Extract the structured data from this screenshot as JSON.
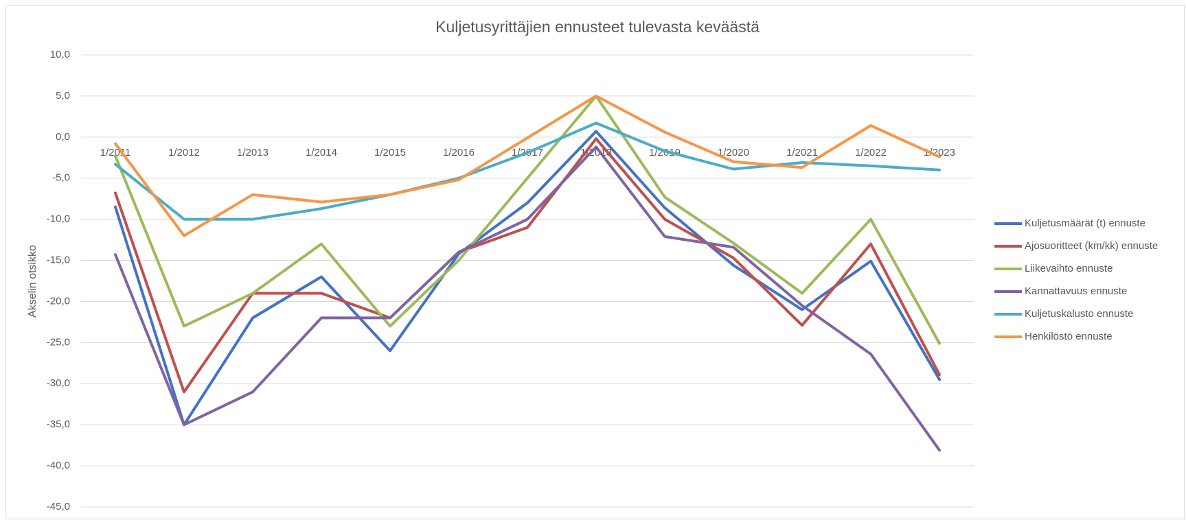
{
  "chart_data": {
    "type": "line",
    "title": "Kuljetusyrittäjien ennusteet tulevasta keväästä",
    "y_label": "Akselin otsikko",
    "categories": [
      "1/2011",
      "1/2012",
      "1/2013",
      "1/2014",
      "1/2015",
      "1/2016",
      "1/2017",
      "1/2018",
      "1/2019",
      "1/2020",
      "1/2021",
      "1/2022",
      "1/2023"
    ],
    "series": [
      {
        "name": "Kuljetusmäärät (t) ennuste",
        "color": "#4472c4",
        "values": [
          -8.5,
          -35,
          -22,
          -17,
          -26,
          -14.2,
          -8,
          0.7,
          -8.6,
          -15.6,
          -21,
          -15.1,
          -29.5
        ]
      },
      {
        "name": "Ajosuoritteet (km/kk) ennuste",
        "color": "#c0504d",
        "values": [
          -6.8,
          -31,
          -19,
          -19,
          -22,
          -14,
          -11,
          -0.2,
          -10,
          -14.7,
          -22.9,
          -13,
          -28.9
        ]
      },
      {
        "name": "Liikevaihto ennuste",
        "color": "#9bbb59",
        "values": [
          -2.3,
          -23,
          -19,
          -13,
          -23,
          -15,
          -5,
          5,
          -7.3,
          -12.9,
          -19,
          -10,
          -25.1
        ]
      },
      {
        "name": "Kannattavuus ennuste",
        "color": "#8064a2",
        "values": [
          -14.3,
          -35,
          -31,
          -22,
          -22,
          -14,
          -10,
          -1.2,
          -12.1,
          -13.4,
          -20.5,
          -26.4,
          -38.1
        ]
      },
      {
        "name": "Kuljetuskalusto ennuste",
        "color": "#4bacc6",
        "values": [
          -3.3,
          -10,
          -10,
          -8.7,
          -7,
          -5,
          -1.9,
          1.7,
          -1.7,
          -3.9,
          -3.1,
          -3.5,
          -4
        ]
      },
      {
        "name": "Henkilöstö ennuste",
        "color": "#f79646",
        "values": [
          -0.8,
          -12,
          -7,
          -7.9,
          -7,
          -5.2,
          -0.1,
          5,
          0.6,
          -3,
          -3.7,
          1.4,
          -2.4
        ]
      }
    ],
    "ylim": [
      -45,
      10
    ],
    "yticks": [
      {
        "value": -45,
        "label": "-45,0"
      },
      {
        "value": -40,
        "label": "-40,0"
      },
      {
        "value": -35,
        "label": "-35,0"
      },
      {
        "value": -30,
        "label": "-30,0"
      },
      {
        "value": -25,
        "label": "-25,0"
      },
      {
        "value": -20,
        "label": "-20,0"
      },
      {
        "value": -15,
        "label": "-15,0"
      },
      {
        "value": -10,
        "label": "-10,0"
      },
      {
        "value": -5,
        "label": "-5,0"
      },
      {
        "value": 0,
        "label": "0,0"
      },
      {
        "value": 5,
        "label": "5,0"
      },
      {
        "value": 10,
        "label": "10,0"
      }
    ],
    "grid": true,
    "legend": "right"
  }
}
